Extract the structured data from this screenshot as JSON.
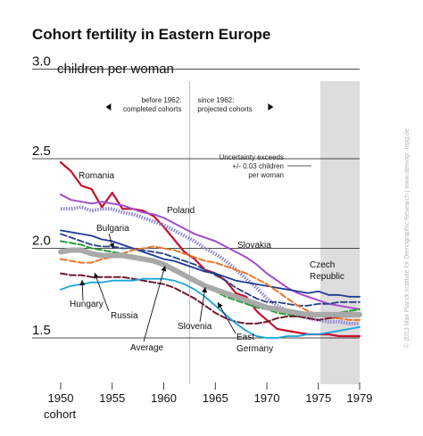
{
  "chart_data": {
    "type": "line",
    "title": "Cohort fertility in Eastern Europe",
    "ylabel": "children per woman",
    "xlabel": "cohort",
    "xlim": [
      1947,
      1979
    ],
    "ylim": [
      1.4,
      3.0
    ],
    "yticks": [
      {
        "value": 3.0,
        "label": "3.0"
      },
      {
        "value": 2.5,
        "label": "2.5"
      },
      {
        "value": 2.0,
        "label": "2.0"
      },
      {
        "value": 1.5,
        "label": "1.5"
      }
    ],
    "xticks": [
      {
        "value": 1950,
        "label": "1950"
      },
      {
        "value": 1955,
        "label": "1955"
      },
      {
        "value": 1960,
        "label": "1960"
      },
      {
        "value": 1965,
        "label": "1965"
      },
      {
        "value": 1970,
        "label": "1970"
      },
      {
        "value": 1975,
        "label": "1975"
      },
      {
        "value": 1979,
        "label": "1979"
      }
    ],
    "divider_year": 1962.5,
    "divider_left_text": [
      "before 1962:",
      "completed cohorts"
    ],
    "divider_right_text": [
      "since 1962:",
      "projected cohorts"
    ],
    "uncertainty_start": 1975.2,
    "uncertainty_text": [
      "Uncertainty exceeds",
      "+/- 0.03 children",
      "per woman"
    ],
    "series": [
      {
        "name": "Romania",
        "color": "#c8102e",
        "style": "solid",
        "width": 2.2,
        "x": [
          1950,
          1951,
          1952,
          1953,
          1954,
          1955,
          1956,
          1957,
          1958,
          1959,
          1960,
          1961,
          1962,
          1963,
          1964,
          1965,
          1966,
          1967,
          1968,
          1969,
          1970,
          1971,
          1972,
          1973,
          1974,
          1975,
          1976,
          1977,
          1978,
          1979
        ],
        "y": [
          2.48,
          2.43,
          2.35,
          2.33,
          2.23,
          2.31,
          2.22,
          2.22,
          2.21,
          2.18,
          2.12,
          2.05,
          1.98,
          1.94,
          1.88,
          1.86,
          1.82,
          1.75,
          1.73,
          1.65,
          1.6,
          1.55,
          1.54,
          1.53,
          1.52,
          1.52,
          1.52,
          1.51,
          1.51,
          1.51
        ]
      },
      {
        "name": "Poland",
        "color": "#8a7fd1",
        "style": "dotted",
        "width": 4,
        "x": [
          1950,
          1951,
          1952,
          1953,
          1954,
          1955,
          1956,
          1957,
          1958,
          1959,
          1960,
          1961,
          1962,
          1963,
          1964,
          1965,
          1966,
          1967,
          1968,
          1969,
          1970,
          1971,
          1972,
          1973,
          1974,
          1975,
          1976,
          1977,
          1978,
          1979
        ],
        "y": [
          2.22,
          2.22,
          2.23,
          2.21,
          2.22,
          2.22,
          2.2,
          2.19,
          2.17,
          2.15,
          2.13,
          2.1,
          2.07,
          2.04,
          2.0,
          1.97,
          1.93,
          1.88,
          1.83,
          1.78,
          1.72,
          1.68,
          1.65,
          1.63,
          1.61,
          1.6,
          1.59,
          1.59,
          1.58,
          1.58
        ]
      },
      {
        "name": "Slovakia",
        "color": "#a64ac9",
        "style": "solid",
        "width": 2,
        "x": [
          1950,
          1951,
          1952,
          1953,
          1954,
          1955,
          1956,
          1957,
          1958,
          1959,
          1960,
          1961,
          1962,
          1963,
          1964,
          1965,
          1966,
          1967,
          1968,
          1969,
          1970,
          1971,
          1972,
          1973,
          1974,
          1975,
          1976,
          1977,
          1978,
          1979
        ],
        "y": [
          2.3,
          2.27,
          2.26,
          2.25,
          2.26,
          2.25,
          2.24,
          2.22,
          2.2,
          2.19,
          2.17,
          2.14,
          2.11,
          2.08,
          2.06,
          2.04,
          2.01,
          1.98,
          1.95,
          1.91,
          1.86,
          1.82,
          1.78,
          1.75,
          1.73,
          1.71,
          1.69,
          1.68,
          1.67,
          1.66
        ]
      },
      {
        "name": "Czech Republic",
        "color": "#1f3a93",
        "style": "solid",
        "width": 1.8,
        "x": [
          1950,
          1951,
          1952,
          1953,
          1954,
          1955,
          1956,
          1957,
          1958,
          1959,
          1960,
          1961,
          1962,
          1963,
          1964,
          1965,
          1966,
          1967,
          1968,
          1969,
          1970,
          1971,
          1972,
          1973,
          1974,
          1975,
          1976,
          1977,
          1978,
          1979
        ],
        "y": [
          2.1,
          2.09,
          2.08,
          2.07,
          2.05,
          2.04,
          2.02,
          2.0,
          1.98,
          1.96,
          1.94,
          1.93,
          1.91,
          1.89,
          1.87,
          1.86,
          1.84,
          1.82,
          1.81,
          1.8,
          1.79,
          1.78,
          1.77,
          1.76,
          1.75,
          1.76,
          1.74,
          1.74,
          1.73,
          1.73
        ]
      },
      {
        "name": "Bulgaria",
        "color": "#27408b",
        "style": "dashed",
        "width": 1.8,
        "x": [
          1950,
          1951,
          1952,
          1953,
          1954,
          1955,
          1956,
          1957,
          1958,
          1959,
          1960,
          1961,
          1962,
          1963,
          1964,
          1965,
          1966,
          1967,
          1968,
          1969,
          1970,
          1971,
          1972,
          1973,
          1974,
          1975,
          1976,
          1977,
          1978,
          1979
        ],
        "y": [
          2.08,
          2.06,
          2.04,
          2.02,
          2.01,
          2.01,
          2.0,
          2.0,
          1.99,
          1.98,
          1.97,
          1.95,
          1.93,
          1.91,
          1.88,
          1.85,
          1.82,
          1.78,
          1.75,
          1.72,
          1.7,
          1.7,
          1.69,
          1.68,
          1.68,
          1.69,
          1.69,
          1.7,
          1.7,
          1.7
        ]
      },
      {
        "name": "Slovenia",
        "color": "#2a9d3a",
        "style": "dashed",
        "width": 2,
        "x": [
          1950,
          1951,
          1952,
          1953,
          1954,
          1955,
          1956,
          1957,
          1958,
          1959,
          1960,
          1961,
          1962,
          1963,
          1964,
          1965,
          1966,
          1967,
          1968,
          1969,
          1970,
          1971,
          1972,
          1973,
          1974,
          1975,
          1976,
          1977,
          1978,
          1979
        ],
        "y": [
          2.04,
          2.03,
          2.02,
          2.0,
          1.99,
          1.98,
          1.97,
          1.96,
          1.95,
          1.93,
          1.9,
          1.88,
          1.85,
          1.82,
          1.79,
          1.76,
          1.73,
          1.71,
          1.69,
          1.67,
          1.66,
          1.64,
          1.63,
          1.62,
          1.62,
          1.62,
          1.63,
          1.64,
          1.65,
          1.66
        ]
      },
      {
        "name": "Hungary",
        "color": "#e8772e",
        "style": "dashed",
        "width": 2,
        "x": [
          1950,
          1951,
          1952,
          1953,
          1954,
          1955,
          1956,
          1957,
          1958,
          1959,
          1960,
          1961,
          1962,
          1963,
          1964,
          1965,
          1966,
          1967,
          1968,
          1969,
          1970,
          1971,
          1972,
          1973,
          1974,
          1975,
          1976,
          1977,
          1978,
          1979
        ],
        "y": [
          1.94,
          1.93,
          1.92,
          1.92,
          1.94,
          1.95,
          1.97,
          1.99,
          2.0,
          2.01,
          2.0,
          1.99,
          1.97,
          1.95,
          1.93,
          1.92,
          1.9,
          1.88,
          1.86,
          1.83,
          1.8,
          1.76,
          1.72,
          1.68,
          1.65,
          1.63,
          1.61,
          1.61,
          1.6,
          1.6
        ]
      },
      {
        "name": "Russia",
        "color": "#6e1a2e",
        "style": "dashed",
        "width": 2,
        "x": [
          1950,
          1951,
          1952,
          1953,
          1954,
          1955,
          1956,
          1957,
          1958,
          1959,
          1960,
          1961,
          1962,
          1963,
          1964,
          1965,
          1966,
          1967,
          1968,
          1969,
          1970,
          1971,
          1972,
          1973,
          1974,
          1975,
          1976,
          1977,
          1978,
          1979
        ],
        "y": [
          1.86,
          1.85,
          1.85,
          1.84,
          1.84,
          1.84,
          1.84,
          1.83,
          1.82,
          1.81,
          1.8,
          1.78,
          1.75,
          1.72,
          1.68,
          1.64,
          1.61,
          1.59,
          1.58,
          1.58,
          1.59,
          1.61,
          1.62,
          1.62,
          1.61,
          1.6,
          1.61,
          1.62,
          1.62,
          1.63
        ]
      },
      {
        "name": "Average",
        "color": "#a9a9a9",
        "style": "solid",
        "width": 6,
        "x": [
          1950,
          1951,
          1952,
          1953,
          1954,
          1955,
          1956,
          1957,
          1958,
          1959,
          1960,
          1961,
          1962,
          1963,
          1964,
          1965,
          1966,
          1967,
          1968,
          1969,
          1970,
          1971,
          1972,
          1973,
          1974,
          1975,
          1976,
          1977,
          1978,
          1979
        ],
        "y": [
          1.98,
          1.99,
          1.99,
          1.97,
          1.96,
          1.96,
          1.96,
          1.95,
          1.94,
          1.93,
          1.91,
          1.88,
          1.85,
          1.82,
          1.79,
          1.77,
          1.75,
          1.73,
          1.71,
          1.69,
          1.67,
          1.66,
          1.65,
          1.64,
          1.63,
          1.63,
          1.63,
          1.63,
          1.63,
          1.63
        ]
      },
      {
        "name": "East Germany",
        "color": "#1aa3d9",
        "style": "solid",
        "width": 1.8,
        "x": [
          1950,
          1951,
          1952,
          1953,
          1954,
          1955,
          1956,
          1957,
          1958,
          1959,
          1960,
          1961,
          1962,
          1963,
          1964,
          1965,
          1966,
          1967,
          1968,
          1969,
          1970,
          1971,
          1972,
          1973,
          1974,
          1975,
          1976,
          1977,
          1978,
          1979
        ],
        "y": [
          1.77,
          1.79,
          1.8,
          1.81,
          1.81,
          1.82,
          1.82,
          1.82,
          1.83,
          1.83,
          1.83,
          1.82,
          1.8,
          1.77,
          1.73,
          1.68,
          1.63,
          1.58,
          1.54,
          1.51,
          1.5,
          1.5,
          1.51,
          1.51,
          1.52,
          1.52,
          1.53,
          1.54,
          1.55,
          1.56
        ]
      }
    ],
    "labels": [
      {
        "name": "Romania",
        "text": [
          "Romania"
        ]
      },
      {
        "name": "Poland",
        "text": [
          "Poland"
        ]
      },
      {
        "name": "Bulgaria",
        "text": [
          "Bulgaria"
        ]
      },
      {
        "name": "Slovakia",
        "text": [
          "Slovakia"
        ]
      },
      {
        "name": "Czech Republic",
        "text": [
          "Czech",
          "Republic"
        ]
      },
      {
        "name": "Hungary",
        "text": [
          "Hungary"
        ]
      },
      {
        "name": "Russia",
        "text": [
          "Russia"
        ]
      },
      {
        "name": "Average",
        "text": [
          "Average"
        ]
      },
      {
        "name": "Slovenia",
        "text": [
          "Slovenia"
        ]
      },
      {
        "name": "East Germany",
        "text": [
          "East",
          "Germany"
        ]
      }
    ]
  },
  "credit": "© 2013 Max Planck Institute for Demographic Research  |  www.demogr. mpg.de"
}
